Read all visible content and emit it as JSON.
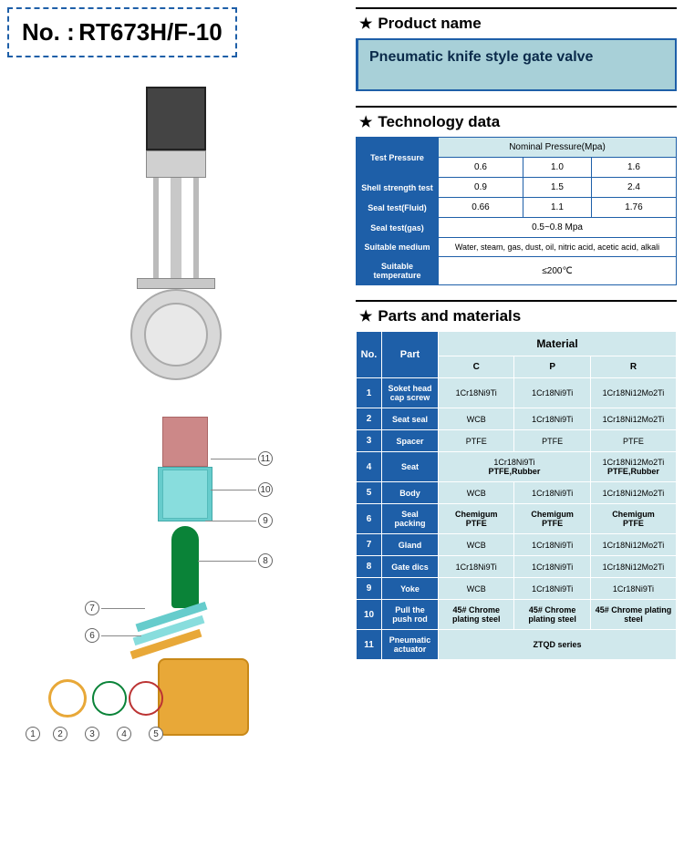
{
  "no_label": "No. :",
  "no_value": "RT673H/F-10",
  "sections": {
    "product_name": "Product name",
    "technology_data": "Technology data",
    "parts_materials": "Parts and materials"
  },
  "product_name_value": "Pneumatic knife style gate valve",
  "tech": {
    "test_pressure_label": "Test Pressure",
    "nominal_header": "Nominal Pressure(Mpa)",
    "nominal_vals": [
      "0.6",
      "1.0",
      "1.6"
    ],
    "rows": [
      {
        "label": "Shell strength test",
        "vals": [
          "0.9",
          "1.5",
          "2.4"
        ]
      },
      {
        "label": "Seal test(Fluid)",
        "vals": [
          "0.66",
          "1.1",
          "1.76"
        ]
      }
    ],
    "seal_gas_label": "Seal test(gas)",
    "seal_gas_val": "0.5~0.8 Mpa",
    "medium_label": "Suitable medium",
    "medium_val": "Water, steam, gas, dust, oil, nitric acid, acetic acid, alkali",
    "temp_label": "Suitable temperature",
    "temp_val": "≤200℃"
  },
  "parts_header": {
    "no": "No.",
    "part": "Part",
    "material": "Material",
    "cols": [
      "C",
      "P",
      "R"
    ]
  },
  "parts": [
    {
      "no": "1",
      "part": "Soket head cap screw",
      "mats": [
        "1Cr18Ni9Ti",
        "1Cr18Ni9Ti",
        "1Cr18Ni12Mo2Ti"
      ]
    },
    {
      "no": "2",
      "part": "Seat seal",
      "mats": [
        "WCB",
        "1Cr18Ni9Ti",
        "1Cr18Ni12Mo2Ti"
      ]
    },
    {
      "no": "3",
      "part": "Spacer",
      "mats": [
        "PTFE",
        "PTFE",
        "PTFE"
      ]
    },
    {
      "no": "4",
      "part": "Seat",
      "mats": [
        "",
        "1Cr18Ni9Ti\nPTFE,Rubber",
        "1Cr18Ni12Mo2Ti\nPTFE,Rubber"
      ],
      "span12": true
    },
    {
      "no": "5",
      "part": "Body",
      "mats": [
        "WCB",
        "1Cr18Ni9Ti",
        "1Cr18Ni12Mo2Ti"
      ]
    },
    {
      "no": "6",
      "part": "Seal packing",
      "mats": [
        "Chemigum\nPTFE",
        "Chemigum\nPTFE",
        "Chemigum\nPTFE"
      ],
      "bold": true
    },
    {
      "no": "7",
      "part": "Gland",
      "mats": [
        "WCB",
        "1Cr18Ni9Ti",
        "1Cr18Ni12Mo2Ti"
      ]
    },
    {
      "no": "8",
      "part": "Gate dics",
      "mats": [
        "1Cr18Ni9Ti",
        "1Cr18Ni9Ti",
        "1Cr18Ni12Mo2Ti"
      ]
    },
    {
      "no": "9",
      "part": "Yoke",
      "mats": [
        "WCB",
        "1Cr18Ni9Ti",
        "1Cr18Ni9Ti"
      ]
    },
    {
      "no": "10",
      "part": "Pull the push rod",
      "mats": [
        "45# Chrome plating steel",
        "45# Chrome plating steel",
        "45# Chrome plating steel"
      ],
      "bold": true
    },
    {
      "no": "11",
      "part": "Pneumatic actuator",
      "mats": [
        "ZTQD series"
      ],
      "spanall": true
    }
  ],
  "callouts": [
    "1",
    "2",
    "3",
    "4",
    "5",
    "6",
    "7",
    "8",
    "9",
    "10",
    "11"
  ],
  "colors": {
    "blue": "#1e5fa8",
    "lightblue": "#d0e8ec",
    "teal_box": "#a8d0d8"
  }
}
